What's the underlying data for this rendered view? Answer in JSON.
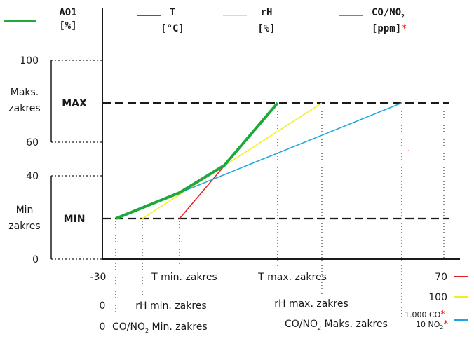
{
  "legend": {
    "ao1": {
      "name": "AO1",
      "unit": "[%]",
      "color": "#1fa83c"
    },
    "t": {
      "name": "T",
      "unit": "[°C]",
      "color": "#e02020"
    },
    "rh": {
      "name": "rH",
      "unit": "[%]",
      "color": "#f2ef1c"
    },
    "co": {
      "name_prefix": "CO/NO",
      "name_sub": "2",
      "unit": "[ppm]",
      "asterisk": "*",
      "color": "#1aa6e0"
    }
  },
  "y_axis": {
    "ticks": [
      "100",
      "60",
      "40",
      "0"
    ],
    "maks_label_1": "Maks.",
    "maks_label_2": "zakres",
    "min_label_1": "Min",
    "min_label_2": "zakres",
    "max_line_label": "MAX",
    "min_line_label": "MIN"
  },
  "x_axis": {
    "t_start": "-30",
    "t_end": "70",
    "rh_start": "0",
    "rh_end": "100",
    "co_start": "0",
    "co_end_1": "1.000 CO",
    "co_end_2_prefix": "10 NO",
    "co_end_2_sub": "2",
    "asterisk": "*",
    "t_min": "T min. zakres",
    "t_max": "T max. zakres",
    "rh_min": "rH min. zakres",
    "rh_max": "rH max. zakres",
    "co_min_prefix": "CO/NO",
    "co_min_sub": "2",
    "co_min_suffix": " Min. zakres",
    "co_max_prefix": "CO/NO",
    "co_max_sub": "2",
    "co_max_suffix": " Maks. zakres"
  }
}
